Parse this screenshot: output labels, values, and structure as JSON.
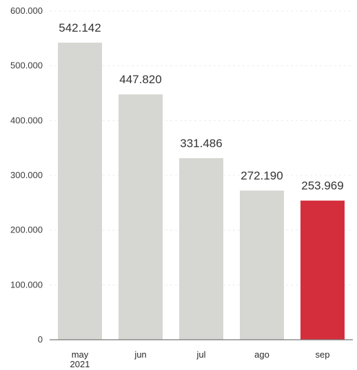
{
  "chart_data": {
    "type": "bar",
    "categories": [
      "may\n2021",
      "jun",
      "jul",
      "ago",
      "sep"
    ],
    "values": [
      542142,
      447820,
      331486,
      272190,
      253969
    ],
    "value_labels": [
      "542.142",
      "447.820",
      "331.486",
      "272.190",
      "253.969"
    ],
    "title": "",
    "xlabel": "",
    "ylabel": "",
    "ylim": [
      0,
      600000
    ],
    "y_ticks": [
      0,
      100000,
      200000,
      300000,
      400000,
      500000,
      600000
    ],
    "y_tick_labels": [
      "0",
      "100.000",
      "200.000",
      "300.000",
      "400.000",
      "500.000",
      "600.000"
    ],
    "grid": true,
    "legend": "none",
    "colors": {
      "default_bar": "#d6d6d2",
      "highlight_bar": "#d42e3c",
      "highlight_index": 4
    }
  }
}
